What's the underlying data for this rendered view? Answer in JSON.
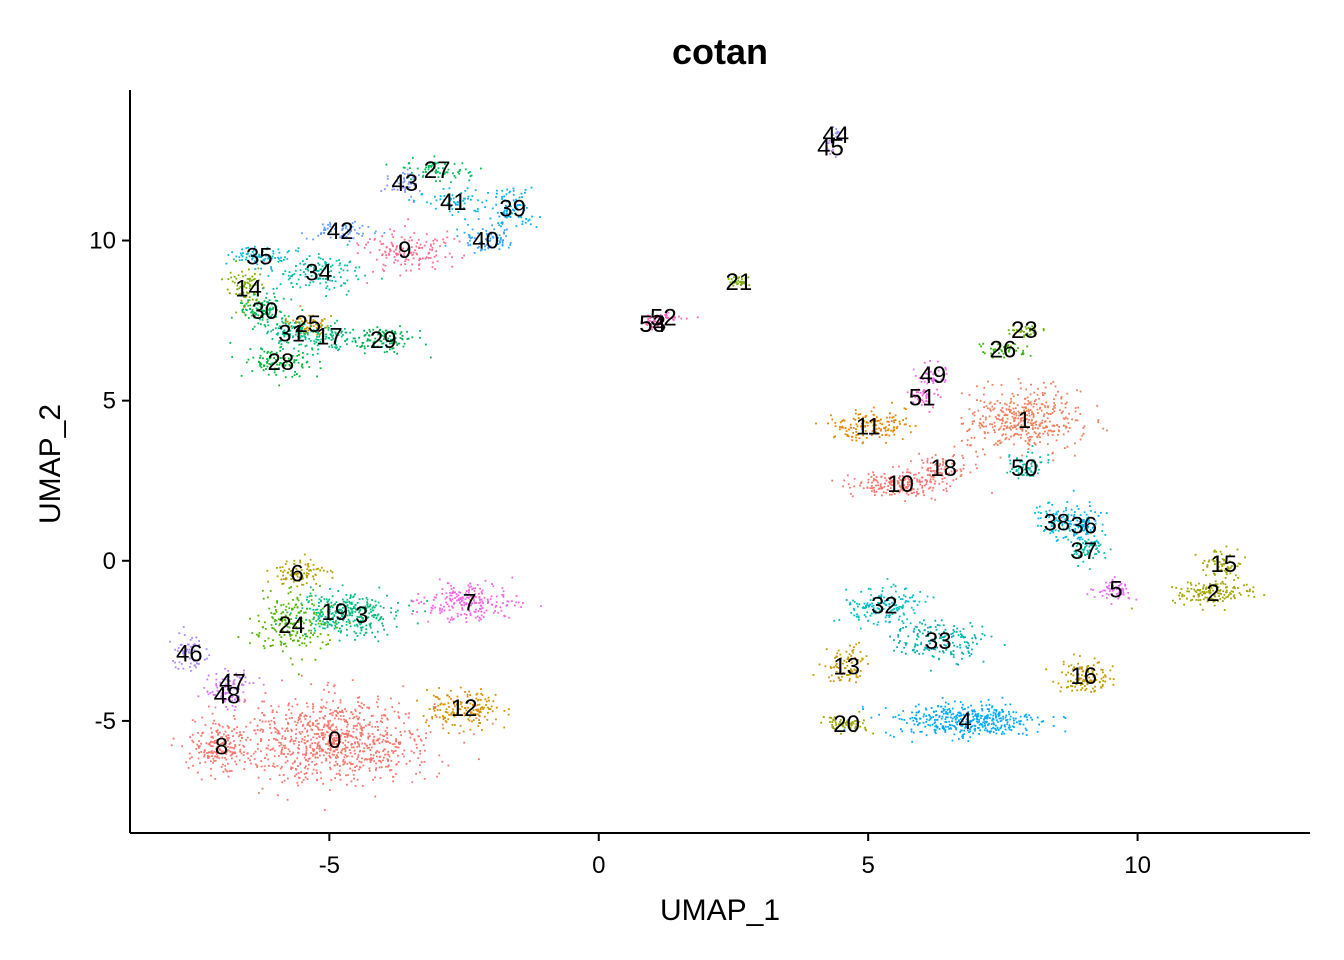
{
  "chart_data": {
    "type": "scatter",
    "title": "cotan",
    "xlabel": "UMAP_1",
    "ylabel": "UMAP_2",
    "xlim": [
      -8.7,
      13.2
    ],
    "ylim": [
      -8.5,
      14.7
    ],
    "xticks": [
      -5,
      0,
      5,
      10
    ],
    "yticks": [
      -5,
      0,
      5,
      10
    ],
    "grid": false,
    "legend": "none",
    "clusters": [
      {
        "label": "0",
        "x": -4.9,
        "y": -5.6,
        "sx": 1.3,
        "sy": 0.95,
        "n": 900,
        "color": "#F8766D"
      },
      {
        "label": "1",
        "x": 7.9,
        "y": 4.4,
        "sx": 0.75,
        "sy": 0.7,
        "n": 420,
        "color": "#F07E59"
      },
      {
        "label": "2",
        "x": 11.4,
        "y": -1.0,
        "sx": 0.55,
        "sy": 0.25,
        "n": 150,
        "color": "#A3A500"
      },
      {
        "label": "3",
        "x": -4.4,
        "y": -1.7,
        "sx": 0.55,
        "sy": 0.45,
        "n": 160,
        "color": "#00BA75"
      },
      {
        "label": "4",
        "x": 6.8,
        "y": -5.0,
        "sx": 1.0,
        "sy": 0.4,
        "n": 420,
        "color": "#00A9FF"
      },
      {
        "label": "5",
        "x": 9.6,
        "y": -0.9,
        "sx": 0.25,
        "sy": 0.2,
        "n": 60,
        "color": "#E76BF3"
      },
      {
        "label": "6",
        "x": -5.6,
        "y": -0.4,
        "sx": 0.4,
        "sy": 0.3,
        "n": 90,
        "color": "#B79F00"
      },
      {
        "label": "7",
        "x": -2.4,
        "y": -1.3,
        "sx": 0.6,
        "sy": 0.4,
        "n": 220,
        "color": "#F564E3"
      },
      {
        "label": "8",
        "x": -7.0,
        "y": -5.8,
        "sx": 0.4,
        "sy": 0.6,
        "n": 200,
        "color": "#F8766D"
      },
      {
        "label": "9",
        "x": -3.6,
        "y": 9.7,
        "sx": 0.6,
        "sy": 0.5,
        "n": 150,
        "color": "#FF6C91"
      },
      {
        "label": "10",
        "x": 5.6,
        "y": 2.4,
        "sx": 0.65,
        "sy": 0.3,
        "n": 200,
        "color": "#F8766D"
      },
      {
        "label": "11",
        "x": 5.0,
        "y": 4.2,
        "sx": 0.5,
        "sy": 0.35,
        "n": 150,
        "color": "#E58700"
      },
      {
        "label": "12",
        "x": -2.5,
        "y": -4.6,
        "sx": 0.5,
        "sy": 0.4,
        "n": 160,
        "color": "#D39200"
      },
      {
        "label": "13",
        "x": 4.6,
        "y": -3.3,
        "sx": 0.3,
        "sy": 0.4,
        "n": 90,
        "color": "#C99800"
      },
      {
        "label": "14",
        "x": -6.5,
        "y": 8.5,
        "sx": 0.25,
        "sy": 0.5,
        "n": 90,
        "color": "#7CAE00"
      },
      {
        "label": "15",
        "x": 11.6,
        "y": -0.1,
        "sx": 0.3,
        "sy": 0.3,
        "n": 60,
        "color": "#A3A500"
      },
      {
        "label": "16",
        "x": 9.0,
        "y": -3.6,
        "sx": 0.35,
        "sy": 0.35,
        "n": 120,
        "color": "#C49A00"
      },
      {
        "label": "17",
        "x": -5.0,
        "y": 7.0,
        "sx": 0.35,
        "sy": 0.3,
        "n": 90,
        "color": "#00BF7D"
      },
      {
        "label": "18",
        "x": 6.4,
        "y": 2.9,
        "sx": 0.4,
        "sy": 0.3,
        "n": 80,
        "color": "#F8766D"
      },
      {
        "label": "19",
        "x": -4.9,
        "y": -1.6,
        "sx": 0.5,
        "sy": 0.4,
        "n": 160,
        "color": "#00C08B"
      },
      {
        "label": "20",
        "x": 4.6,
        "y": -5.1,
        "sx": 0.3,
        "sy": 0.2,
        "n": 70,
        "color": "#9CA700"
      },
      {
        "label": "21",
        "x": 2.6,
        "y": 8.7,
        "sx": 0.2,
        "sy": 0.1,
        "n": 35,
        "color": "#7CAE00"
      },
      {
        "label": "23",
        "x": 7.9,
        "y": 7.2,
        "sx": 0.2,
        "sy": 0.15,
        "n": 35,
        "color": "#6BB100"
      },
      {
        "label": "24",
        "x": -5.7,
        "y": -2.0,
        "sx": 0.5,
        "sy": 0.65,
        "n": 200,
        "color": "#53B400"
      },
      {
        "label": "25",
        "x": -5.4,
        "y": 7.4,
        "sx": 0.3,
        "sy": 0.25,
        "n": 60,
        "color": "#C99800"
      },
      {
        "label": "26",
        "x": 7.5,
        "y": 6.6,
        "sx": 0.35,
        "sy": 0.15,
        "n": 50,
        "color": "#39B600"
      },
      {
        "label": "27",
        "x": -3.0,
        "y": 12.2,
        "sx": 0.5,
        "sy": 0.25,
        "n": 70,
        "color": "#00BC56"
      },
      {
        "label": "28",
        "x": -5.9,
        "y": 6.2,
        "sx": 0.45,
        "sy": 0.35,
        "n": 110,
        "color": "#00BA38"
      },
      {
        "label": "29",
        "x": -4.0,
        "y": 6.9,
        "sx": 0.4,
        "sy": 0.3,
        "n": 110,
        "color": "#00B050"
      },
      {
        "label": "30",
        "x": -6.2,
        "y": 7.8,
        "sx": 0.35,
        "sy": 0.35,
        "n": 110,
        "color": "#00BD5C"
      },
      {
        "label": "31",
        "x": -5.7,
        "y": 7.1,
        "sx": 0.3,
        "sy": 0.3,
        "n": 80,
        "color": "#00BC8C"
      },
      {
        "label": "32",
        "x": 5.3,
        "y": -1.4,
        "sx": 0.5,
        "sy": 0.4,
        "n": 160,
        "color": "#00BFC4"
      },
      {
        "label": "33",
        "x": 6.3,
        "y": -2.5,
        "sx": 0.6,
        "sy": 0.45,
        "n": 180,
        "color": "#00B0B0"
      },
      {
        "label": "34",
        "x": -5.2,
        "y": 9.0,
        "sx": 0.6,
        "sy": 0.4,
        "n": 140,
        "color": "#00BFA5"
      },
      {
        "label": "35",
        "x": -6.3,
        "y": 9.5,
        "sx": 0.4,
        "sy": 0.25,
        "n": 80,
        "color": "#00BCD8"
      },
      {
        "label": "36",
        "x": 9.0,
        "y": 1.1,
        "sx": 0.25,
        "sy": 0.45,
        "n": 90,
        "color": "#00B4EF"
      },
      {
        "label": "37",
        "x": 9.0,
        "y": 0.3,
        "sx": 0.25,
        "sy": 0.3,
        "n": 60,
        "color": "#00C1A9"
      },
      {
        "label": "38",
        "x": 8.5,
        "y": 1.2,
        "sx": 0.3,
        "sy": 0.4,
        "n": 80,
        "color": "#00BBDA"
      },
      {
        "label": "39",
        "x": -1.6,
        "y": 11.0,
        "sx": 0.3,
        "sy": 0.5,
        "n": 90,
        "color": "#00ADFA"
      },
      {
        "label": "40",
        "x": -2.1,
        "y": 10.0,
        "sx": 0.4,
        "sy": 0.3,
        "n": 80,
        "color": "#35A2FF"
      },
      {
        "label": "41",
        "x": -2.7,
        "y": 11.2,
        "sx": 0.4,
        "sy": 0.3,
        "n": 60,
        "color": "#00B8E7"
      },
      {
        "label": "42",
        "x": -4.8,
        "y": 10.3,
        "sx": 0.4,
        "sy": 0.25,
        "n": 60,
        "color": "#619CFF"
      },
      {
        "label": "43",
        "x": -3.6,
        "y": 11.8,
        "sx": 0.3,
        "sy": 0.25,
        "n": 50,
        "color": "#8494FF"
      },
      {
        "label": "44",
        "x": 4.4,
        "y": 13.3,
        "sx": 0.1,
        "sy": 0.2,
        "n": 20,
        "color": "#9590FF"
      },
      {
        "label": "45",
        "x": 4.3,
        "y": 12.9,
        "sx": 0.08,
        "sy": 0.15,
        "n": 15,
        "color": "#B983FF"
      },
      {
        "label": "46",
        "x": -7.6,
        "y": -2.9,
        "sx": 0.25,
        "sy": 0.4,
        "n": 60,
        "color": "#AC88FF"
      },
      {
        "label": "47",
        "x": -6.8,
        "y": -3.8,
        "sx": 0.3,
        "sy": 0.3,
        "n": 50,
        "color": "#C77CFF"
      },
      {
        "label": "48",
        "x": -6.9,
        "y": -4.2,
        "sx": 0.3,
        "sy": 0.3,
        "n": 50,
        "color": "#DB72FB"
      },
      {
        "label": "49",
        "x": 6.2,
        "y": 5.8,
        "sx": 0.2,
        "sy": 0.25,
        "n": 40,
        "color": "#E76BF3"
      },
      {
        "label": "50",
        "x": 7.9,
        "y": 2.9,
        "sx": 0.3,
        "sy": 0.3,
        "n": 60,
        "color": "#00C1A3"
      },
      {
        "label": "51",
        "x": 6.0,
        "y": 5.1,
        "sx": 0.2,
        "sy": 0.25,
        "n": 40,
        "color": "#FA62DB"
      },
      {
        "label": "52",
        "x": 1.2,
        "y": 7.6,
        "sx": 0.25,
        "sy": 0.1,
        "n": 30,
        "color": "#FF61C3"
      },
      {
        "label": "53",
        "x": 1.0,
        "y": 7.4,
        "sx": 0.15,
        "sy": 0.1,
        "n": 15,
        "color": "#FF62BC"
      },
      {
        "label": "54",
        "x": 1.0,
        "y": 7.4,
        "sx": 0.15,
        "sy": 0.1,
        "n": 15,
        "color": "#FF65AC"
      }
    ]
  }
}
